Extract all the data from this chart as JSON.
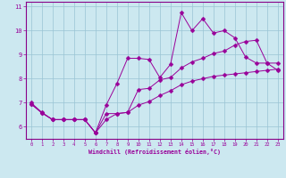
{
  "xlabel": "Windchill (Refroidissement éolien,°C)",
  "xlim": [
    -0.5,
    23.5
  ],
  "ylim": [
    5.5,
    11.2
  ],
  "yticks": [
    6,
    7,
    8,
    9,
    10,
    11
  ],
  "xticks": [
    0,
    1,
    2,
    3,
    4,
    5,
    6,
    7,
    8,
    9,
    10,
    11,
    12,
    13,
    14,
    15,
    16,
    17,
    18,
    19,
    20,
    21,
    22,
    23
  ],
  "bg_color": "#cce8f0",
  "plot_bg": "#cce8f0",
  "line_color": "#990099",
  "grid_color": "#99c4d4",
  "border_color": "#880088",
  "line1_y": [
    7.0,
    6.6,
    6.3,
    6.3,
    6.3,
    6.3,
    5.75,
    6.9,
    7.8,
    8.85,
    8.85,
    8.8,
    8.05,
    8.6,
    10.75,
    10.0,
    10.5,
    9.9,
    10.0,
    9.7,
    8.9,
    8.65,
    8.65,
    8.35
  ],
  "line2_y": [
    6.95,
    6.58,
    6.3,
    6.3,
    6.3,
    6.3,
    5.75,
    6.55,
    6.55,
    6.6,
    7.55,
    7.6,
    7.95,
    8.05,
    8.45,
    8.7,
    8.85,
    9.05,
    9.15,
    9.4,
    9.55,
    9.6,
    8.65,
    8.65
  ],
  "line3_y": [
    6.95,
    6.58,
    6.3,
    6.3,
    6.3,
    6.3,
    5.75,
    6.3,
    6.55,
    6.6,
    6.9,
    7.05,
    7.3,
    7.5,
    7.75,
    7.9,
    8.0,
    8.1,
    8.15,
    8.2,
    8.25,
    8.3,
    8.35,
    8.4
  ]
}
